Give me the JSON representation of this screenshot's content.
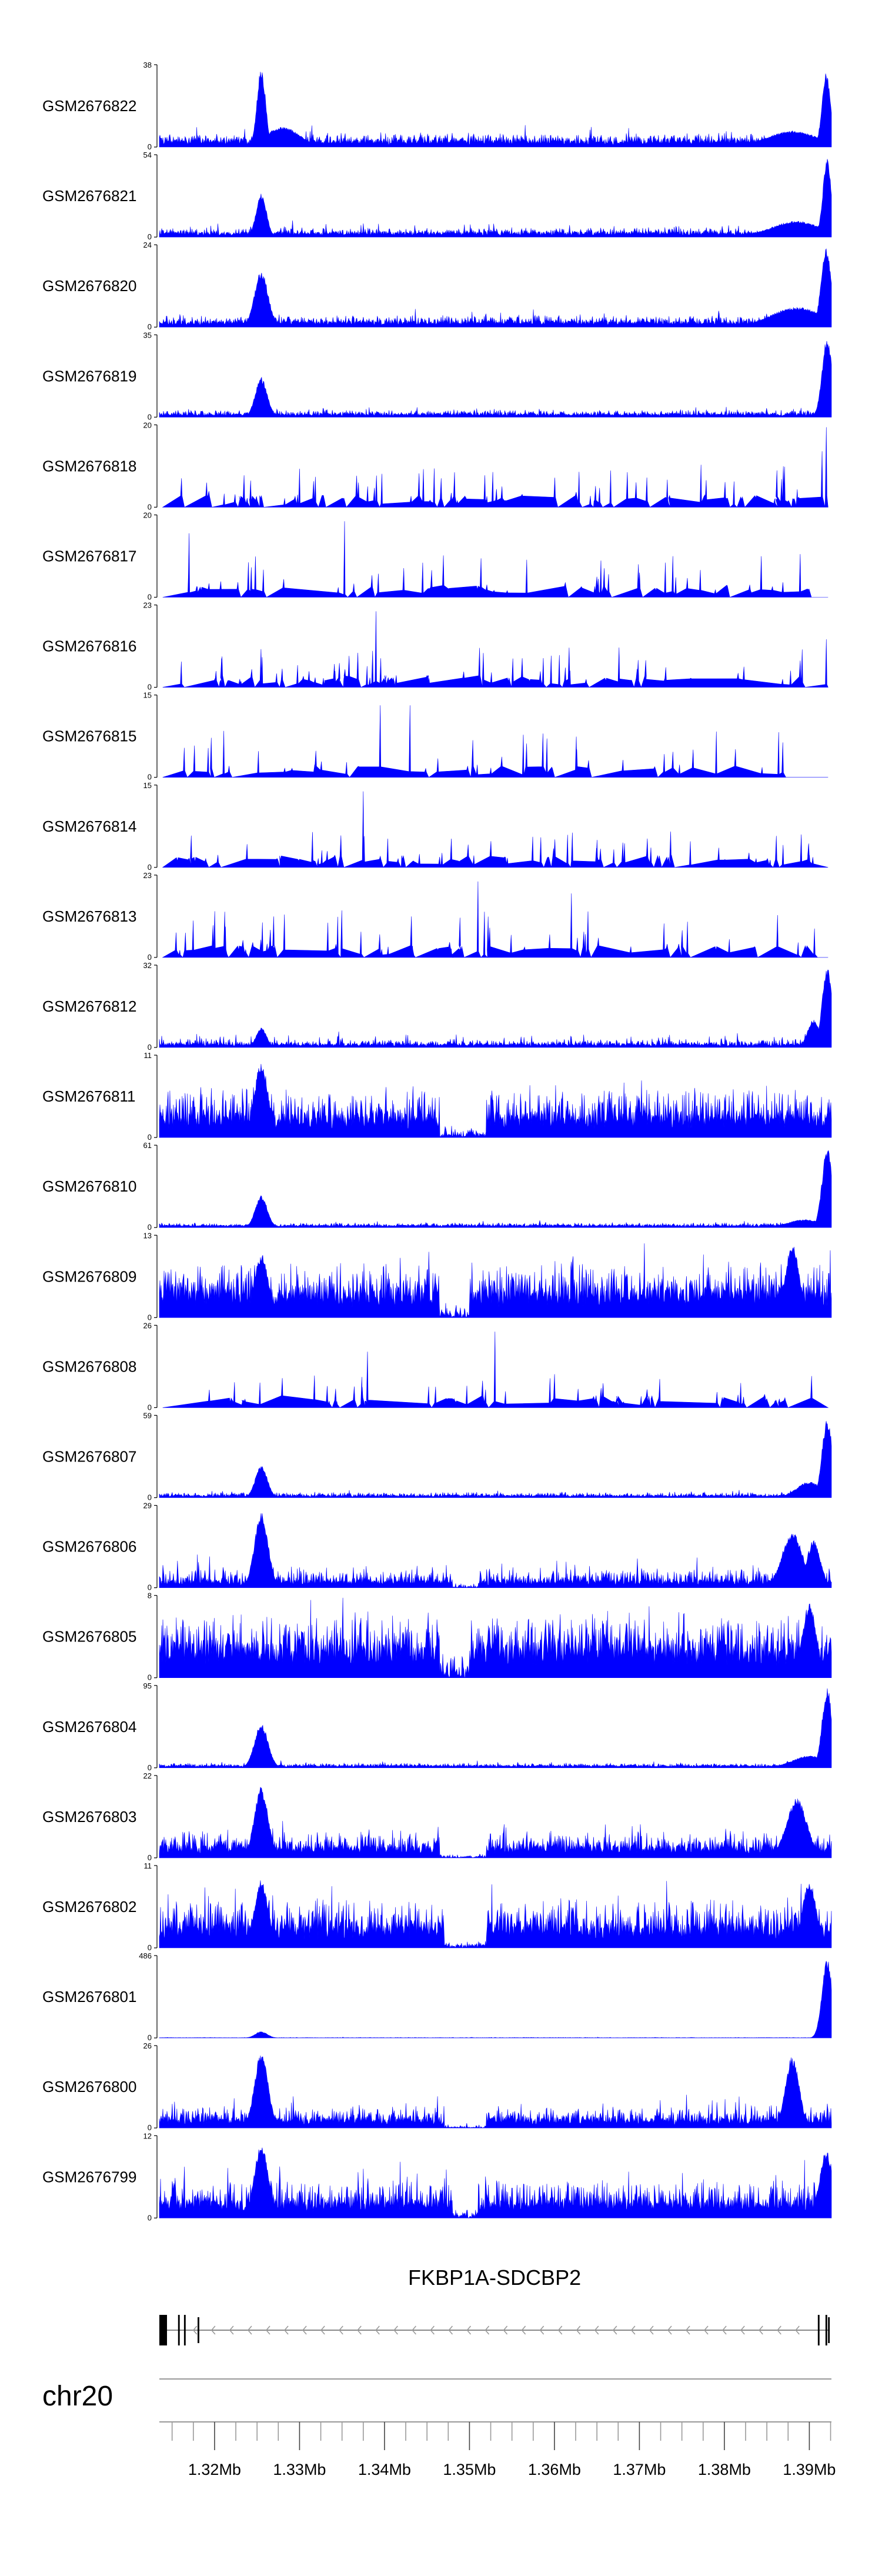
{
  "chart_data": {
    "type": "area",
    "title": "",
    "chromosome": "chr20",
    "xlim": [
      1.3135,
      1.3926
    ],
    "x_unit": "Mb",
    "grid": false,
    "legend": "none",
    "gene": {
      "name": "FKBP1A-SDCBP2",
      "strand": "-",
      "start": 1.3135,
      "end": 1.3924,
      "exons": [
        {
          "start": 1.3135,
          "end": 1.3144,
          "thick": true
        },
        {
          "start": 1.3157,
          "end": 1.3159,
          "thick": true
        },
        {
          "start": 1.3164,
          "end": 1.3166,
          "thick": true
        },
        {
          "start": 1.318,
          "end": 1.3182,
          "thick": false
        },
        {
          "start": 1.391,
          "end": 1.3912,
          "thick": true
        },
        {
          "start": 1.3919,
          "end": 1.3921,
          "thick": true
        },
        {
          "start": 1.3922,
          "end": 1.3924,
          "thick": false
        }
      ]
    },
    "x_ticks": [
      "1.32Mb",
      "1.33Mb",
      "1.34Mb",
      "1.35Mb",
      "1.36Mb",
      "1.37Mb",
      "1.38Mb",
      "1.39Mb"
    ],
    "x_tick_values": [
      1.32,
      1.33,
      1.34,
      1.35,
      1.36,
      1.37,
      1.38,
      1.39
    ],
    "minor_tick_step": 0.0025,
    "tracks": [
      {
        "name": "GSM2676822",
        "ymax": "38",
        "ymin": "0",
        "style": "dense",
        "baseline": 0.06,
        "noise": 0.09,
        "spikes": 0.12,
        "peaks": [
          [
            1.3255,
            1.0,
            0.0005
          ],
          [
            1.392,
            0.95,
            0.0005
          ],
          [
            1.328,
            0.25,
            0.002
          ],
          [
            1.388,
            0.2,
            0.003
          ]
        ]
      },
      {
        "name": "GSM2676821",
        "ymax": "54",
        "ymin": "0",
        "style": "dense",
        "baseline": 0.04,
        "noise": 0.06,
        "spikes": 0.1,
        "peaks": [
          [
            1.3255,
            0.55,
            0.0006
          ],
          [
            1.3921,
            1.0,
            0.0005
          ],
          [
            1.3885,
            0.2,
            0.003
          ]
        ]
      },
      {
        "name": "GSM2676820",
        "ymax": "24",
        "ymin": "0",
        "style": "dense",
        "baseline": 0.05,
        "noise": 0.08,
        "spikes": 0.1,
        "peaks": [
          [
            1.3255,
            0.7,
            0.0008
          ],
          [
            1.392,
            1.0,
            0.0006
          ],
          [
            1.3885,
            0.25,
            0.003
          ]
        ]
      },
      {
        "name": "GSM2676819",
        "ymax": "35",
        "ymin": "0",
        "style": "dense",
        "baseline": 0.03,
        "noise": 0.05,
        "spikes": 0.06,
        "peaks": [
          [
            1.3255,
            0.5,
            0.0007
          ],
          [
            1.3921,
            1.0,
            0.0006
          ]
        ]
      },
      {
        "name": "GSM2676818",
        "ymax": "20",
        "ymin": "0",
        "style": "sparse",
        "nspikes": 80,
        "maxh": 0.55,
        "peaks": [
          [
            1.392,
            1.0,
            0.0006
          ],
          [
            1.3915,
            0.7,
            0.0005
          ]
        ]
      },
      {
        "name": "GSM2676817",
        "ymax": "20",
        "ymin": "0",
        "style": "sparse",
        "nspikes": 55,
        "maxh": 0.55,
        "peaks": [
          [
            1.317,
            0.8,
            0.0003
          ],
          [
            1.3353,
            0.95,
            0.0003
          ]
        ]
      },
      {
        "name": "GSM2676816",
        "ymax": "23",
        "ymin": "0",
        "style": "sparse",
        "nspikes": 75,
        "maxh": 0.5,
        "peaks": [
          [
            1.339,
            0.95,
            0.0003
          ],
          [
            1.392,
            0.6,
            0.0005
          ]
        ]
      },
      {
        "name": "GSM2676815",
        "ymax": "15",
        "ymin": "0",
        "style": "sparse",
        "nspikes": 40,
        "maxh": 0.75,
        "peaks": [
          [
            1.3395,
            0.9,
            0.0003
          ],
          [
            1.343,
            0.9,
            0.0003
          ]
        ]
      },
      {
        "name": "GSM2676814",
        "ymax": "15",
        "ymin": "0",
        "style": "sparse",
        "nspikes": 70,
        "maxh": 0.45,
        "peaks": [
          [
            1.3375,
            0.95,
            0.0003
          ]
        ]
      },
      {
        "name": "GSM2676813",
        "ymax": "23",
        "ymin": "0",
        "style": "sparse",
        "nspikes": 60,
        "maxh": 0.6,
        "peaks": [
          [
            1.351,
            0.95,
            0.0003
          ],
          [
            1.362,
            0.8,
            0.0003
          ]
        ]
      },
      {
        "name": "GSM2676812",
        "ymax": "32",
        "ymin": "0",
        "style": "dense",
        "baseline": 0.03,
        "noise": 0.06,
        "spikes": 0.12,
        "peaks": [
          [
            1.3255,
            0.25,
            0.0006
          ],
          [
            1.3921,
            1.0,
            0.0006
          ],
          [
            1.3905,
            0.35,
            0.0007
          ]
        ]
      },
      {
        "name": "GSM2676811",
        "ymax": "11",
        "ymin": "0",
        "style": "dense",
        "baseline": 0.2,
        "noise": 0.35,
        "spikes": 0.3,
        "peaks": [
          [
            1.3255,
            0.95,
            0.0008
          ]
        ],
        "gaps": [
          [
            1.3465,
            1.352,
            0.03
          ]
        ]
      },
      {
        "name": "GSM2676810",
        "ymax": "61",
        "ymin": "0",
        "style": "dense",
        "baseline": 0.02,
        "noise": 0.03,
        "spikes": 0.04,
        "peaks": [
          [
            1.3255,
            0.4,
            0.0007
          ],
          [
            1.3921,
            1.0,
            0.0006
          ],
          [
            1.3895,
            0.1,
            0.002
          ]
        ]
      },
      {
        "name": "GSM2676809",
        "ymax": "13",
        "ymin": "0",
        "style": "dense",
        "baseline": 0.25,
        "noise": 0.35,
        "spikes": 0.3,
        "peaks": [
          [
            1.3255,
            0.8,
            0.0008
          ],
          [
            1.388,
            0.95,
            0.0008
          ]
        ],
        "gaps": [
          [
            1.3465,
            1.35,
            0.03
          ]
        ]
      },
      {
        "name": "GSM2676808",
        "ymax": "26",
        "ymin": "0",
        "style": "sparse",
        "nspikes": 55,
        "maxh": 0.45,
        "peaks": [
          [
            1.353,
            0.95,
            0.0003
          ],
          [
            1.338,
            0.7,
            0.0003
          ]
        ]
      },
      {
        "name": "GSM2676807",
        "ymax": "59",
        "ymin": "0",
        "style": "dense",
        "baseline": 0.02,
        "noise": 0.04,
        "spikes": 0.05,
        "peaks": [
          [
            1.3255,
            0.4,
            0.0007
          ],
          [
            1.3921,
            1.0,
            0.0006
          ],
          [
            1.39,
            0.2,
            0.0015
          ]
        ]
      },
      {
        "name": "GSM2676806",
        "ymax": "29",
        "ymin": "0",
        "style": "dense",
        "baseline": 0.06,
        "noise": 0.15,
        "spikes": 0.2,
        "peaks": [
          [
            1.3255,
            0.95,
            0.0008
          ],
          [
            1.388,
            0.7,
            0.0012
          ],
          [
            1.3905,
            0.6,
            0.0008
          ]
        ],
        "gaps": [
          [
            1.348,
            1.351,
            0.02
          ]
        ]
      },
      {
        "name": "GSM2676805",
        "ymax": "8",
        "ymin": "0",
        "style": "dense",
        "baseline": 0.3,
        "noise": 0.4,
        "spikes": 0.3,
        "peaks": [
          [
            1.39,
            0.95,
            0.0008
          ]
        ],
        "gaps": [
          [
            1.3465,
            1.35,
            0.05
          ]
        ]
      },
      {
        "name": "GSM2676804",
        "ymax": "95",
        "ymin": "0",
        "style": "dense",
        "baseline": 0.02,
        "noise": 0.03,
        "spikes": 0.04,
        "peaks": [
          [
            1.3255,
            0.55,
            0.0008
          ],
          [
            1.3921,
            1.0,
            0.0006
          ],
          [
            1.39,
            0.15,
            0.002
          ]
        ]
      },
      {
        "name": "GSM2676803",
        "ymax": "22",
        "ymin": "0",
        "style": "dense",
        "baseline": 0.1,
        "noise": 0.2,
        "spikes": 0.2,
        "peaks": [
          [
            1.3255,
            0.9,
            0.0008
          ],
          [
            1.3885,
            0.75,
            0.0012
          ]
        ],
        "gaps": [
          [
            1.3465,
            1.352,
            0.02
          ]
        ]
      },
      {
        "name": "GSM2676802",
        "ymax": "11",
        "ymin": "0",
        "style": "dense",
        "baseline": 0.2,
        "noise": 0.35,
        "spikes": 0.3,
        "peaks": [
          [
            1.3255,
            0.85,
            0.0008
          ],
          [
            1.39,
            0.85,
            0.0008
          ]
        ],
        "gaps": [
          [
            1.347,
            1.352,
            0.02
          ]
        ]
      },
      {
        "name": "GSM2676801",
        "ymax": "486",
        "ymin": "0",
        "style": "dense",
        "baseline": 0.002,
        "noise": 0.004,
        "spikes": 0.004,
        "peaks": [
          [
            1.3255,
            0.08,
            0.0007
          ],
          [
            1.3921,
            1.0,
            0.0006
          ]
        ]
      },
      {
        "name": "GSM2676800",
        "ymax": "26",
        "ymin": "0",
        "style": "dense",
        "baseline": 0.08,
        "noise": 0.15,
        "spikes": 0.2,
        "peaks": [
          [
            1.3255,
            0.95,
            0.0008
          ],
          [
            1.388,
            0.9,
            0.0008
          ]
        ],
        "gaps": [
          [
            1.347,
            1.352,
            0.02
          ]
        ]
      },
      {
        "name": "GSM2676799",
        "ymax": "12",
        "ymin": "0",
        "style": "dense",
        "baseline": 0.15,
        "noise": 0.3,
        "spikes": 0.3,
        "peaks": [
          [
            1.3255,
            0.95,
            0.0008
          ],
          [
            1.392,
            0.85,
            0.0008
          ]
        ],
        "gaps": [
          [
            1.348,
            1.351,
            0.03
          ]
        ]
      }
    ]
  }
}
